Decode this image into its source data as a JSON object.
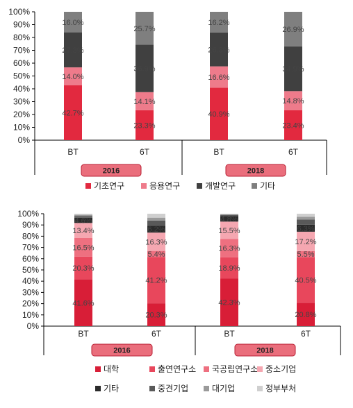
{
  "charts": [
    {
      "type": "bar",
      "stacked": true,
      "percent": true,
      "ylim": [
        0,
        100
      ],
      "yticks": [
        "0%",
        "10%",
        "20%",
        "30%",
        "40%",
        "50%",
        "60%",
        "70%",
        "80%",
        "90%",
        "100%"
      ],
      "categories": [
        "BT",
        "6T",
        "BT",
        "6T"
      ],
      "groups": [
        "2016",
        "2018"
      ],
      "series": [
        {
          "name": "기초연구",
          "color": "#e2293f",
          "values": [
            42.7,
            23.3,
            40.9,
            23.4
          ],
          "labels": [
            "42.7%",
            "23.3%",
            "40.9%",
            "23.4%"
          ]
        },
        {
          "name": "응용연구",
          "color": "#ee7b8b",
          "values": [
            14.0,
            14.1,
            16.6,
            14.8
          ],
          "labels": [
            "14.0%",
            "14.1%",
            "16.6%",
            "14.8%"
          ]
        },
        {
          "name": "개발연구",
          "color": "#404040",
          "values": [
            27.3,
            36.9,
            26.3,
            34.9
          ],
          "labels": [
            "27.3%",
            "36.9%",
            "26.3%",
            "34.9%"
          ]
        },
        {
          "name": "기타",
          "color": "#7f7f7f",
          "values": [
            16.0,
            25.7,
            16.2,
            26.9
          ],
          "labels": [
            "16.0%",
            "25.7%",
            "16.2%",
            "26.9%"
          ]
        }
      ]
    },
    {
      "type": "bar",
      "stacked": true,
      "percent": true,
      "ylim": [
        0,
        100
      ],
      "yticks": [
        "0%",
        "10%",
        "20%",
        "30%",
        "40%",
        "50%",
        "60%",
        "70%",
        "80%",
        "90%",
        "100%"
      ],
      "categories": [
        "BT",
        "6T",
        "BT",
        "6T"
      ],
      "groups": [
        "2016",
        "2018"
      ],
      "series": [
        {
          "name": "대학",
          "color": "#d81e37",
          "values": [
            41.6,
            20.3,
            42.3,
            20.8
          ],
          "labels": [
            "41.6%",
            "20.3%",
            "42.3%",
            "20.8%"
          ]
        },
        {
          "name": "출연연구소",
          "color": "#e8475c",
          "values": [
            20.3,
            41.2,
            18.9,
            40.5
          ],
          "labels": [
            "20.3%",
            "41.2%",
            "18.9%",
            "40.5%"
          ]
        },
        {
          "name": "국공립연구소",
          "color": "#ee7080",
          "values": [
            16.5,
            5.4,
            16.3,
            5.5
          ],
          "labels": [
            "16.5%",
            "5.4%",
            "16.3%",
            "5.5%"
          ]
        },
        {
          "name": "중소기업",
          "color": "#f5a7b1",
          "values": [
            13.4,
            16.3,
            15.5,
            17.2
          ],
          "labels": [
            "13.4%",
            "16.3%",
            "15.5%",
            "17.2%"
          ]
        },
        {
          "name": "기타",
          "color": "#2b2b2b",
          "values": [
            4.6,
            6.2,
            4.8,
            6.3
          ],
          "labels": [
            "4.6%",
            "6.2%",
            "4.8%",
            "6.3%"
          ]
        },
        {
          "name": "중견기업",
          "color": "#595959",
          "values": [
            1.5,
            4.5,
            1.2,
            4.5
          ],
          "labels": [
            "",
            "",
            "",
            ""
          ]
        },
        {
          "name": "대기업",
          "color": "#9a9a9a",
          "values": [
            1.1,
            2.6,
            0.5,
            2.5
          ],
          "labels": [
            "",
            "",
            "",
            ""
          ]
        },
        {
          "name": "정부부처",
          "color": "#cfcfcf",
          "values": [
            1.0,
            3.5,
            0.5,
            2.7
          ],
          "labels": [
            "",
            "",
            "",
            ""
          ]
        }
      ]
    }
  ]
}
